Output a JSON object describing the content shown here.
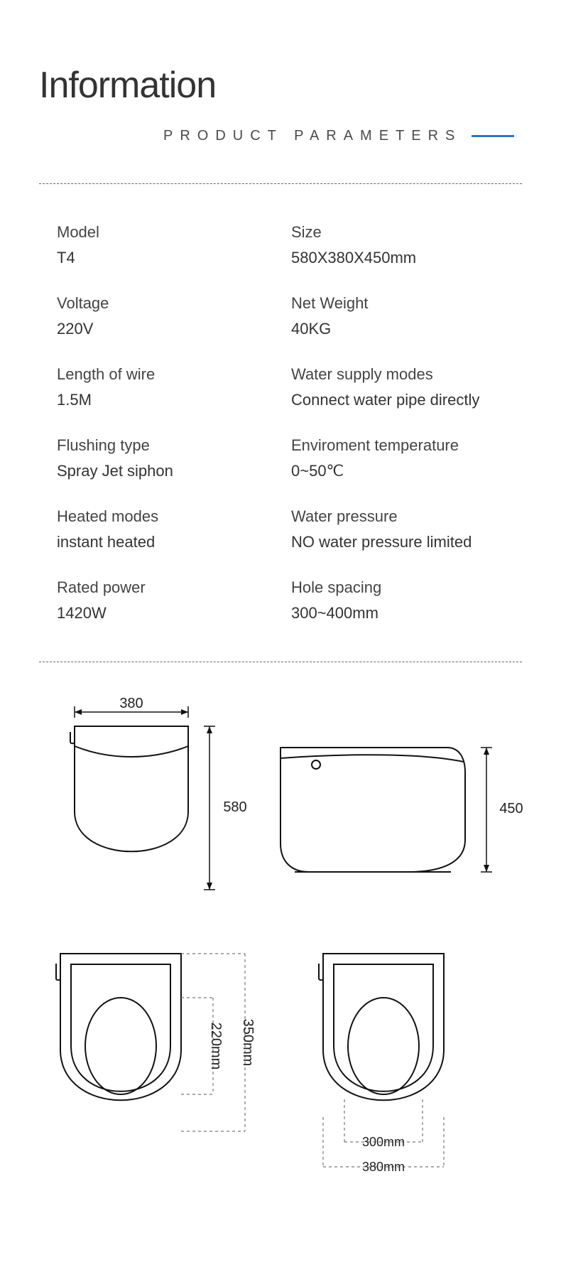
{
  "title": "Information",
  "subtitle": "PRODUCT PARAMETERS",
  "specs": [
    {
      "label": "Model",
      "value": "T4"
    },
    {
      "label": "Size",
      "value": "580X380X450mm"
    },
    {
      "label": "Voltage",
      "value": "220V"
    },
    {
      "label": "Net Weight",
      "value": "40KG"
    },
    {
      "label": "Length of wire",
      "value": "1.5M"
    },
    {
      "label": "Water supply modes",
      "value": "Connect water pipe directly"
    },
    {
      "label": "Flushing type",
      "value": "Spray Jet siphon"
    },
    {
      "label": "Enviroment temperature",
      "value": "0~50℃"
    },
    {
      "label": "Heated modes",
      "value": "instant heated"
    },
    {
      "label": "Water pressure",
      "value": "NO water pressure limited"
    },
    {
      "label": "Rated power",
      "value": "1420W"
    },
    {
      "label": "Hole spacing",
      "value": "300~400mm"
    }
  ],
  "drawings": {
    "stroke_color": "#111111",
    "stroke_width": 2,
    "dash": "4 4",
    "top_view": {
      "width_label": "380",
      "height_label": "580",
      "body_w": 160,
      "body_h": 230
    },
    "side_view": {
      "height_label": "450",
      "body_w": 260,
      "body_h": 175
    },
    "seat_left": {
      "inner_label": "220mm",
      "outer_label": "350mm",
      "body_w": 170,
      "body_h": 260
    },
    "seat_right": {
      "inner_label": "300mm",
      "outer_label": "380mm",
      "body_w": 170,
      "body_h": 260
    }
  },
  "colors": {
    "text": "#333333",
    "accent": "#2a76c4",
    "stroke": "#111111",
    "dash_gray": "#777777",
    "background": "#ffffff"
  }
}
